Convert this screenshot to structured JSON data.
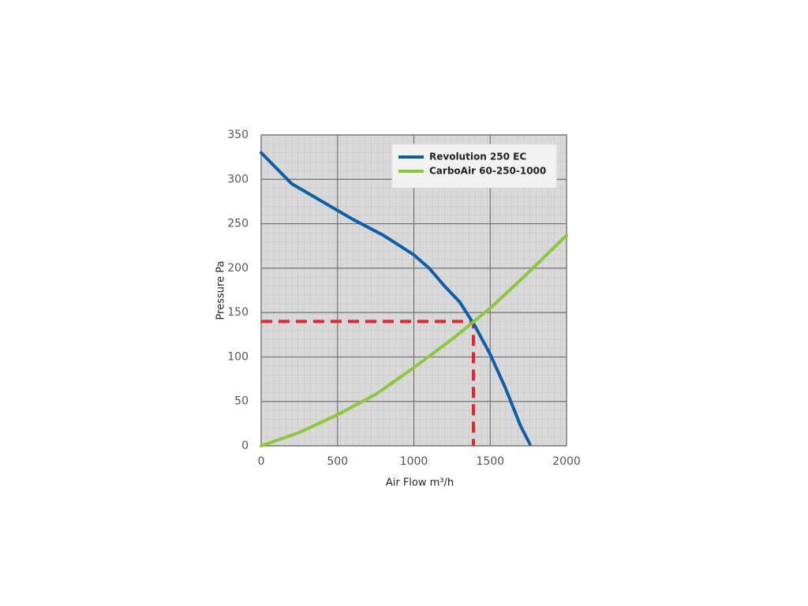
{
  "chart_data": {
    "type": "line",
    "xlabel": "Air Flow m³/h",
    "ylabel": "Pressure Pa",
    "xlim": [
      0,
      2000
    ],
    "ylim": [
      0,
      350
    ],
    "xticks": [
      0,
      500,
      1000,
      1500,
      2000
    ],
    "yticks": [
      0,
      50,
      100,
      150,
      200,
      250,
      300,
      350
    ],
    "grid": true,
    "legend": "upper right",
    "series": [
      {
        "name": "Revolution 250 EC",
        "color": "#0e5ea8",
        "x": [
          0,
          200,
          400,
          600,
          800,
          1000,
          1100,
          1200,
          1300,
          1400,
          1500,
          1600,
          1700,
          1760
        ],
        "values": [
          330,
          295,
          275,
          255,
          237,
          215,
          200,
          180,
          162,
          135,
          103,
          65,
          22,
          2
        ]
      },
      {
        "name": "CarboAir 60-250-1000",
        "color": "#8dc63f",
        "x": [
          0,
          250,
          500,
          750,
          1000,
          1250,
          1500,
          1750,
          2000
        ],
        "values": [
          0,
          15,
          35,
          58,
          88,
          120,
          155,
          195,
          237
        ]
      }
    ],
    "operating_point": {
      "x": 1390,
      "y": 140,
      "color": "#e0262e"
    }
  }
}
